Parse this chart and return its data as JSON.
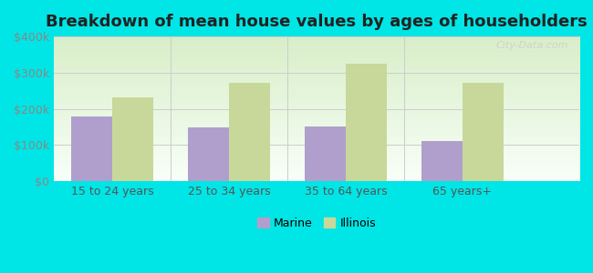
{
  "title": "Breakdown of mean house values by ages of householders",
  "categories": [
    "15 to 24 years",
    "25 to 34 years",
    "35 to 64 years",
    "65 years+"
  ],
  "marine_values": [
    180000,
    150000,
    152000,
    112000
  ],
  "illinois_values": [
    232000,
    272000,
    325000,
    272000
  ],
  "marine_color": "#b09fcc",
  "illinois_color": "#c8d89a",
  "background_color": "#00e5e5",
  "plot_bg_gradient_top": "#e8f5e0",
  "plot_bg_gradient_bottom": "#f0fff0",
  "ylim": [
    0,
    400000
  ],
  "yticks": [
    0,
    100000,
    200000,
    300000,
    400000
  ],
  "ytick_labels": [
    "$0",
    "$100k",
    "$200k",
    "$300k",
    "$400k"
  ],
  "bar_width": 0.35,
  "legend_marine": "Marine",
  "legend_illinois": "Illinois",
  "watermark": "City-Data.com",
  "title_fontsize": 13,
  "tick_fontsize": 9,
  "legend_fontsize": 9
}
